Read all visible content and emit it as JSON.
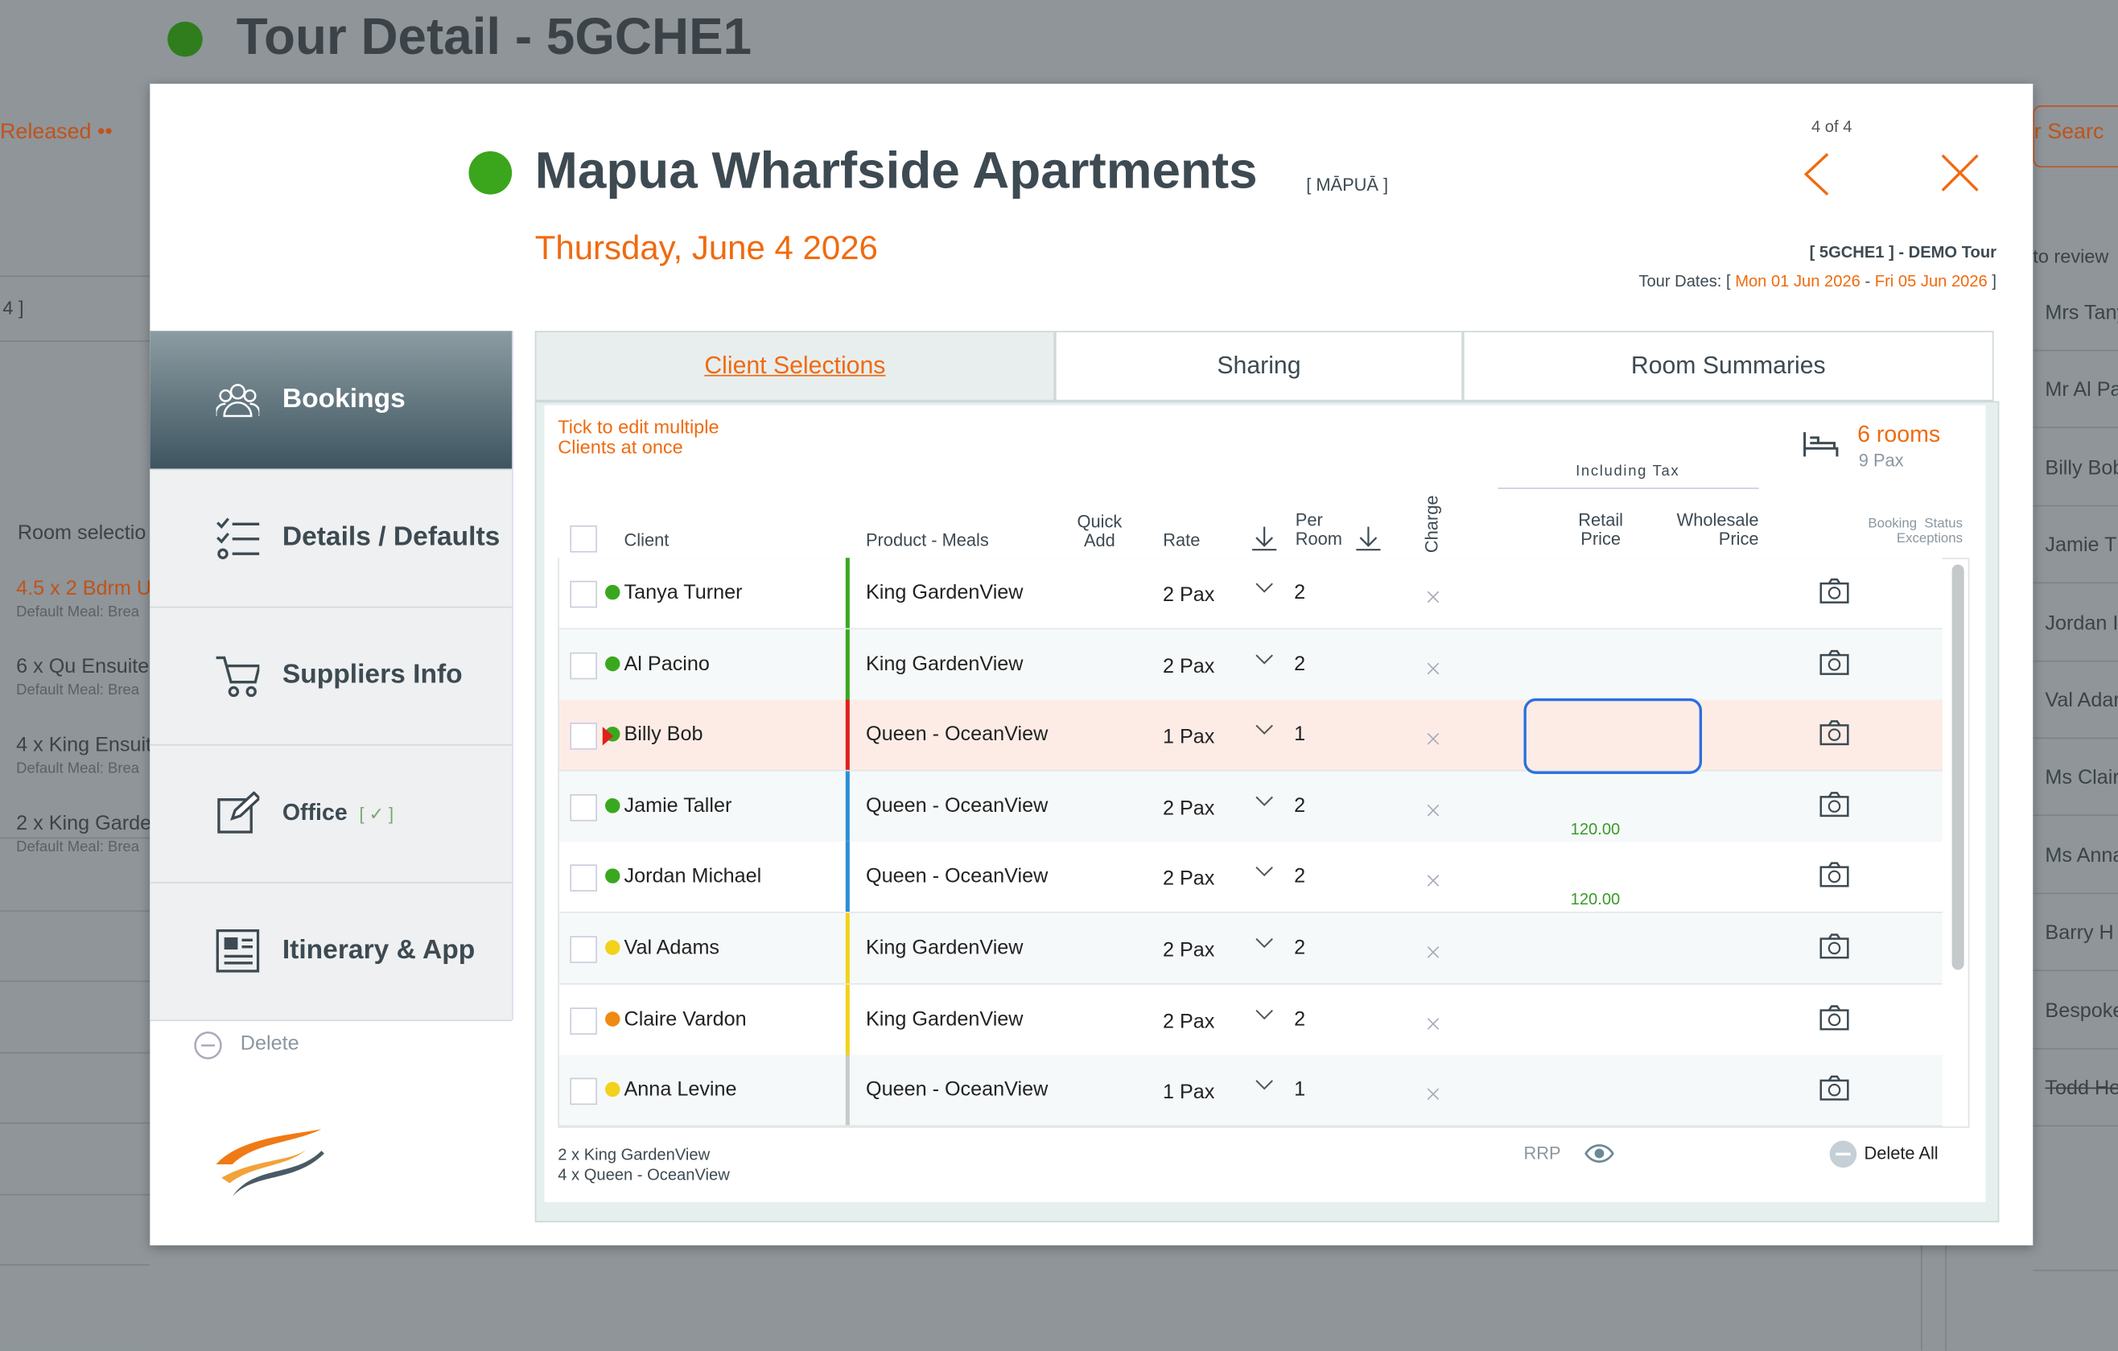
{
  "background": {
    "title": "Tour Detail - 5GCHE1",
    "status": "Released ••",
    "left_ref": "4 ]",
    "room_heading": "Room selectio",
    "rooms": [
      {
        "text": "4.5 x 2 Bdrm U",
        "meal": "Default Meal: Brea"
      },
      {
        "text": "6 x Qu Ensuite",
        "meal": "Default Meal: Brea"
      },
      {
        "text": "4 x King Ensuit",
        "meal": "Default Meal: Brea"
      },
      {
        "text": "2 x King Garde",
        "meal": "Default Meal: Brea"
      }
    ],
    "search": "ur Searc",
    "review": "to review",
    "names": [
      "Mrs Tany",
      "Mr Al Pa",
      "Billy Bob",
      "Jamie T",
      "Jordan I",
      "Val Adar",
      "Ms Claire",
      "Ms Anna",
      "Barry H",
      "Bespoke",
      "Todd He"
    ]
  },
  "modal": {
    "counter": "4 of 4",
    "hotel": "Mapua Wharfside Apartments",
    "local_name": "[ MĀPUĀ ]",
    "date": "Thursday, June 4 2026",
    "tour": "[ 5GCHE1 ] - DEMO Tour",
    "tour_dates": {
      "label": "Tour Dates: [",
      "start": "Mon 01 Jun 2026",
      "separator": "-",
      "end": "Fri 05 Jun 2026",
      "close": "]"
    },
    "nav": [
      "Bookings",
      "Details / Defaults",
      "Suppliers Info",
      "Office",
      "Itinerary & App"
    ],
    "office_check": "[ ✓ ]",
    "delete": "Delete",
    "tabs": [
      "Client Selections",
      "Sharing",
      "Room Summaries"
    ],
    "hint": [
      "Tick to edit multiple",
      "Clients at once"
    ],
    "rooms": "6 rooms",
    "pax": "9 Pax",
    "including_tax": "Including Tax",
    "columns": {
      "client": "Client",
      "product": "Product - Meals",
      "quick_add": "Quick\nAdd",
      "rate": "Rate",
      "per_room": "Per\nRoom",
      "charge": "Charge",
      "retail": "Retail\nPrice",
      "wholesale": "Wholesale\nPrice",
      "status": "Booking  Status\nExceptions"
    },
    "rows": [
      {
        "name": "Tanya Turner",
        "dot": "#3aa81f",
        "bar": "#3aa81f",
        "product": "King GardenView",
        "rate": "2 Pax",
        "per_room": 2,
        "retail": null
      },
      {
        "name": "Al Pacino",
        "dot": "#3aa81f",
        "bar": "#3aa81f",
        "product": "King GardenView",
        "rate": "2 Pax",
        "per_room": 2,
        "retail": null
      },
      {
        "name": "Billy Bob",
        "dot": "#3aa81f",
        "bar": "#e0201b",
        "product": "Queen - OceanView",
        "rate": "1 Pax",
        "per_room": 1,
        "retail": null
      },
      {
        "name": "Jamie Taller",
        "dot": "#3aa81f",
        "bar": "#2a8fd6",
        "product": "Queen - OceanView",
        "rate": "2 Pax",
        "per_room": 2,
        "retail": "120.00"
      },
      {
        "name": "Jordan Michael",
        "dot": "#3aa81f",
        "bar": "#2a8fd6",
        "product": "Queen - OceanView",
        "rate": "2 Pax",
        "per_room": 2,
        "retail": "120.00"
      },
      {
        "name": "Val Adams",
        "dot": "#f2d21b",
        "bar": "#f2d21b",
        "product": "King GardenView",
        "rate": "2 Pax",
        "per_room": 2,
        "retail": null
      },
      {
        "name": "Claire Vardon",
        "dot": "#ef8a12",
        "bar": "#f2d21b",
        "product": "King GardenView",
        "rate": "2 Pax",
        "per_room": 2,
        "retail": null
      },
      {
        "name": "Anna Levine",
        "dot": "#f2d21b",
        "bar": "#c9c9c9",
        "product": "Queen - OceanView",
        "rate": "1 Pax",
        "per_room": 1,
        "retail": null
      }
    ],
    "summary": [
      "2 x King GardenView",
      "4 x Queen - OceanView"
    ],
    "rrp": "RRP",
    "delete_all": "Delete All"
  }
}
